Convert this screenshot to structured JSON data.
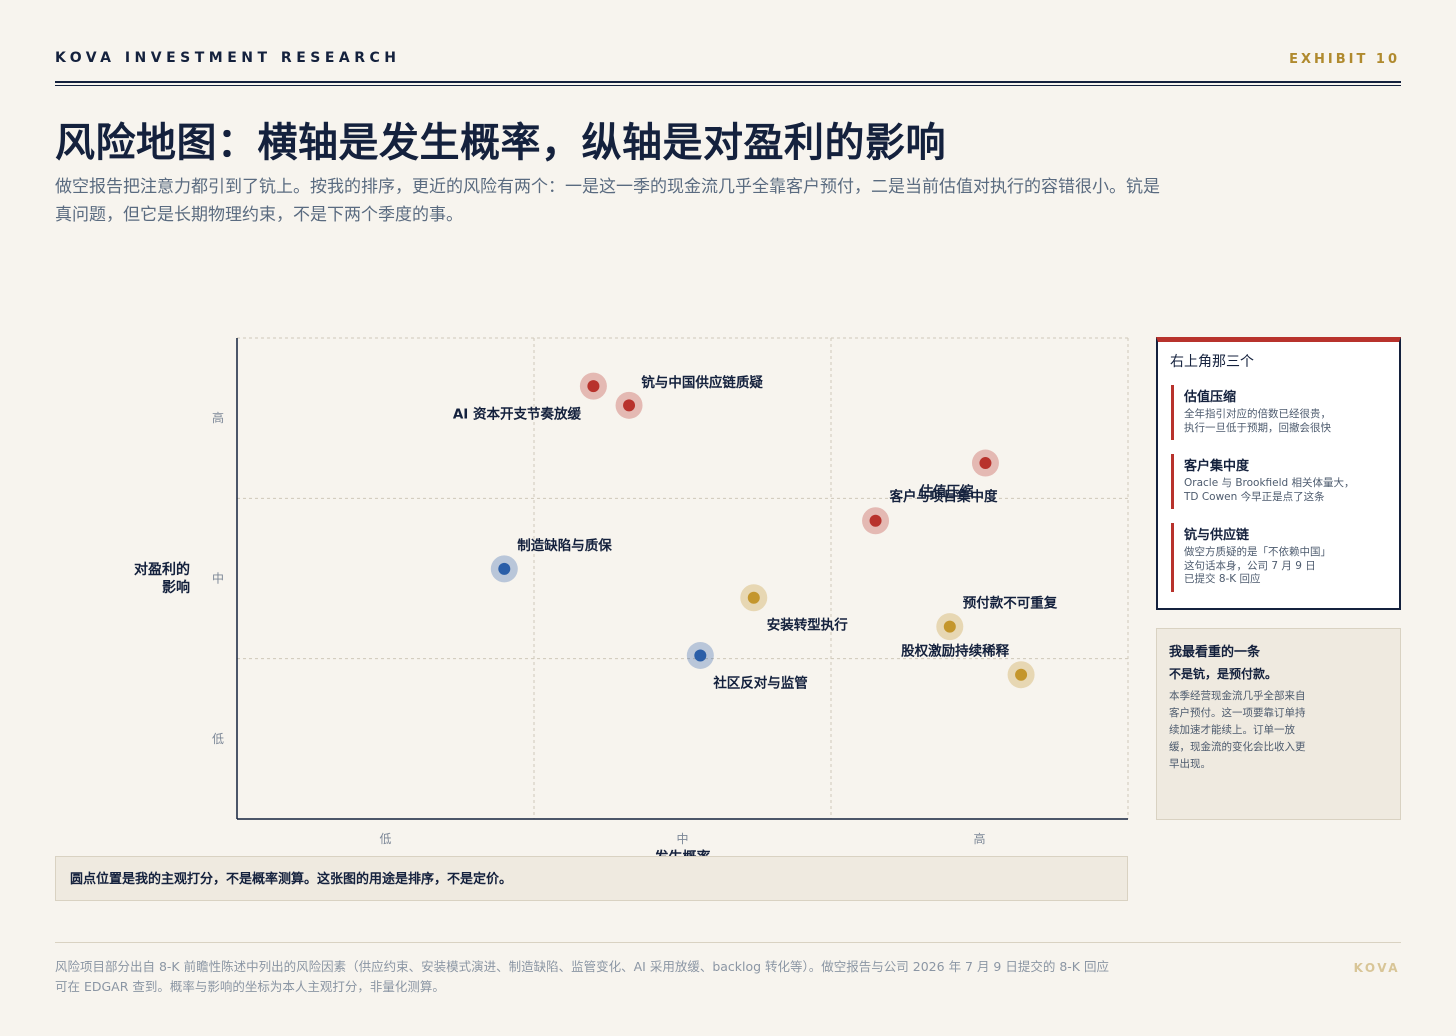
{
  "header": {
    "brand": "KOVA INVESTMENT RESEARCH",
    "exhibit": "EXHIBIT 10"
  },
  "title": "风险地图：横轴是发生概率，纵轴是对盈利的影响",
  "subtitle": "做空报告把注意力都引到了钪上。按我的排序，更近的风险有两个：一是这一季的现金流几乎全靠客户预付，二是当前估值对执行的容错很小。钪是真问题，但它是长期物理约束，不是下两个季度的事。",
  "chart_data": {
    "type": "scatter",
    "xlabel": "发生概率",
    "ylabel": "对盈利的影响",
    "xlim": [
      0,
      3
    ],
    "ylim": [
      0,
      3
    ],
    "x_ticks": [
      "低",
      "中",
      "高"
    ],
    "y_ticks": [
      "低",
      "中",
      "高"
    ],
    "grid": true,
    "points": [
      {
        "label": "钪与中国供应链质疑",
        "x": 1.2,
        "y": 2.7,
        "color": "#b8322c"
      },
      {
        "label": "AI 资本开支节奏放缓",
        "x": 1.32,
        "y": 2.58,
        "color": "#b8322c"
      },
      {
        "label": "估值压缩",
        "x": 2.52,
        "y": 2.22,
        "color": "#b8322c"
      },
      {
        "label": "客户与项目集中度",
        "x": 2.15,
        "y": 1.86,
        "color": "#b8322c"
      },
      {
        "label": "制造缺陷与质保",
        "x": 0.9,
        "y": 1.56,
        "color": "#2a5ea8"
      },
      {
        "label": "安装转型执行",
        "x": 1.74,
        "y": 1.38,
        "color": "#c4962c"
      },
      {
        "label": "预付款不可重复",
        "x": 2.4,
        "y": 1.2,
        "color": "#c4962c"
      },
      {
        "label": "社区反对与监管",
        "x": 1.56,
        "y": 1.02,
        "color": "#2a5ea8"
      },
      {
        "label": "股权激励持续稀释",
        "x": 2.64,
        "y": 0.9,
        "color": "#c4962c"
      }
    ]
  },
  "chart_note": "圆点位置是我的主观打分，不是概率测算。这张图的用途是排序，不是定价。",
  "sidebar": {
    "title": "右上角那三个",
    "items": [
      {
        "name": "估值压缩",
        "desc_lines": [
          "全年指引对应的倍数已经很贵，",
          "执行一旦低于预期，回撤会很快"
        ]
      },
      {
        "name": "客户集中度",
        "desc_lines": [
          "Oracle 与 Brookfield 相关体量大，",
          "TD Cowen 今早正是点了这条"
        ]
      },
      {
        "name": "钪与供应链",
        "desc_lines": [
          "做空方质疑的是「不依赖中国」",
          "这句话本身，公司 7 月 9 日",
          "已提交 8-K 回应"
        ]
      }
    ]
  },
  "focus": {
    "title": "我最看重的一条",
    "emphasis": "不是钪，是预付款。",
    "body": "本季经营现金流几乎全部来自客户预付。这一项要靠订单持续加速才能续上。订单一放缓，现金流的变化会比收入更早出现。"
  },
  "footer": {
    "note": "风险项目部分出自 8-K 前瞻性陈述中列出的风险因素（供应约束、安装模式演进、制造缺陷、监管变化、AI 采用放缓、backlog 转化等）。做空报告与公司 2026 年 7 月 9 日提交的 8-K 回应可在 EDGAR 查到。概率与影响的坐标为本人主观打分，非量化测算。",
    "brand": "KOVA"
  }
}
